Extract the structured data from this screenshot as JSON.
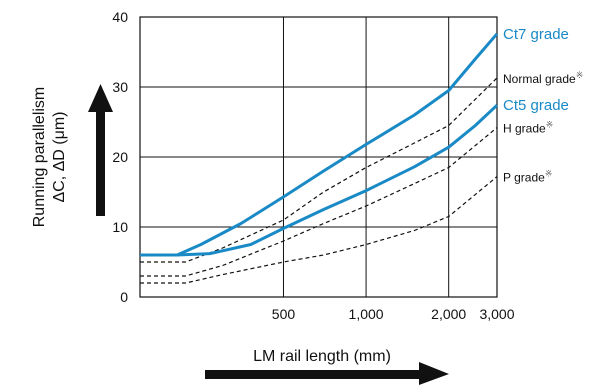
{
  "chart_data": {
    "type": "line",
    "xlabel": "LM rail length (mm)",
    "ylabel_line1": "Running parallelism",
    "ylabel_line2": "ΔC, ΔD (μm)",
    "x_scale": "log",
    "xlim": [
      150,
      3000
    ],
    "ylim": [
      0,
      40
    ],
    "x_ticks": [
      500,
      1000,
      2000,
      3000
    ],
    "x_tick_labels": [
      "500",
      "1,000",
      "2,000",
      "3,000"
    ],
    "y_ticks": [
      0,
      10,
      20,
      30,
      40
    ],
    "y_tick_labels": [
      "0",
      "10",
      "20",
      "30",
      "40"
    ],
    "grid": true,
    "series": [
      {
        "name": "Ct7 grade",
        "label_note": "",
        "style": "solid",
        "color": "#1a8ac6",
        "x": [
          150,
          205,
          250,
          350,
          500,
          700,
          1000,
          1500,
          2000,
          2500,
          3000
        ],
        "y": [
          6,
          6,
          7.5,
          10.5,
          14.3,
          18,
          21.8,
          26,
          29.5,
          34,
          37.6
        ]
      },
      {
        "name": "Normal grade",
        "label_note": "※",
        "style": "dashed",
        "color": "#111111",
        "x": [
          150,
          220,
          300,
          500,
          700,
          1000,
          1500,
          2000,
          3000
        ],
        "y": [
          5,
          5,
          7,
          11,
          15,
          18.5,
          22,
          24.5,
          31.3
        ]
      },
      {
        "name": "Ct5 grade",
        "label_note": "",
        "style": "solid",
        "color": "#1a8ac6",
        "x": [
          150,
          205,
          270,
          380,
          500,
          700,
          1000,
          1500,
          2000,
          2500,
          3000
        ],
        "y": [
          6,
          6,
          6.2,
          7.5,
          9.8,
          12.5,
          15.2,
          18.6,
          21.4,
          24.5,
          27.4
        ]
      },
      {
        "name": "H grade",
        "label_note": "※",
        "style": "dashed",
        "color": "#111111",
        "x": [
          150,
          220,
          300,
          500,
          700,
          1000,
          1500,
          2000,
          3000
        ],
        "y": [
          3,
          3,
          4.5,
          8,
          10.5,
          13,
          16.2,
          18.5,
          24.2
        ]
      },
      {
        "name": "P grade",
        "label_note": "※",
        "style": "dashed",
        "color": "#111111",
        "x": [
          150,
          220,
          300,
          500,
          700,
          1000,
          1500,
          2000,
          3000
        ],
        "y": [
          2,
          2,
          3.2,
          5,
          6,
          7.5,
          9.5,
          11.5,
          17.2
        ]
      }
    ]
  }
}
